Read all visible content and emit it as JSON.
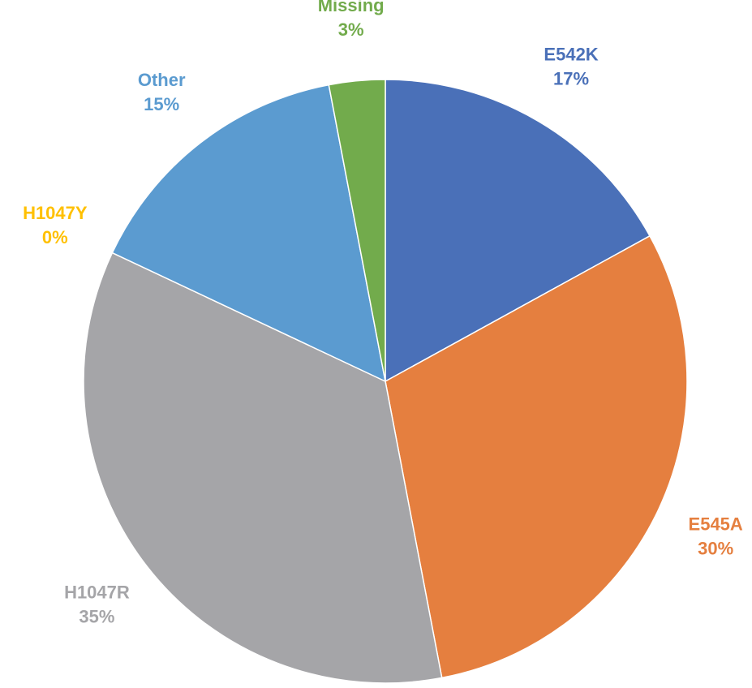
{
  "chart_data": {
    "type": "pie",
    "categories": [
      "E542K",
      "E545A",
      "H1047R",
      "H1047Y",
      "Other",
      "Missing"
    ],
    "values": [
      17,
      30,
      35,
      0,
      15,
      3
    ],
    "value_labels": [
      "17%",
      "30%",
      "35%",
      "0%",
      "15%",
      "3%"
    ],
    "colors": [
      "#4a70b8",
      "#e57f3f",
      "#a5a5a8",
      "#ffc000",
      "#5b9bd0",
      "#72ab4c"
    ]
  }
}
